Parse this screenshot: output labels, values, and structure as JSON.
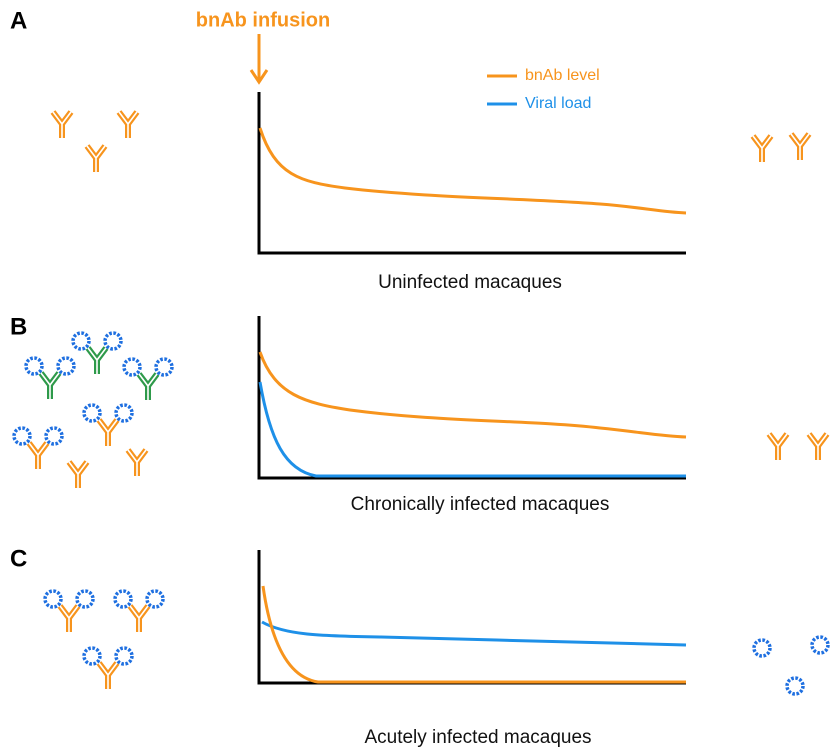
{
  "annotation": "bnAb infusion",
  "legend": [
    "bnAb level",
    "Viral load"
  ],
  "panels": [
    {
      "label": "A",
      "caption": "Uninfected macaques"
    },
    {
      "label": "B",
      "caption": "Chronically infected macaques"
    },
    {
      "label": "C",
      "caption": "Acutely infected macaques"
    }
  ]
}
